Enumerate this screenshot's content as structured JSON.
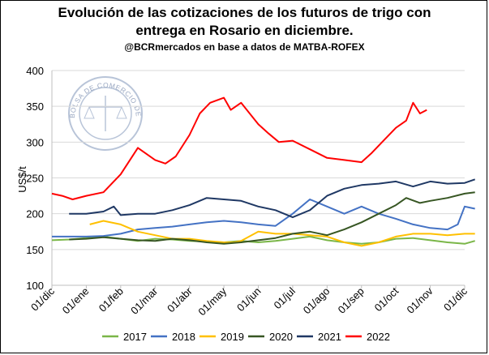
{
  "chart_data": {
    "type": "line",
    "title_line1": "Evolución de las cotizaciones de los futuros de trigo con",
    "title_line2": "entrega en Rosario en diciembre.",
    "subtitle": "@BCRmercados en base a datos de MATBA-ROFEX",
    "ylabel": "US$/t",
    "ylim": [
      100,
      400
    ],
    "yticks": [
      "100",
      "150",
      "200",
      "250",
      "300",
      "350",
      "400"
    ],
    "grid": true,
    "legend_position": "bottom",
    "watermark_text": "BOLSA DE COMERCIO DE ROSARIO",
    "x_unit": "months since 01/dic",
    "xticks": [
      "01/dic",
      "01/ene",
      "01/feb",
      "01/mar",
      "01/abr",
      "01/may",
      "01/jun",
      "01/jul",
      "01/ago",
      "01/sep",
      "01/oct",
      "01/nov",
      "01/dic"
    ],
    "series": [
      {
        "name": "2017",
        "color": "#7ab648",
        "x": [
          0,
          0.5,
          1,
          1.5,
          2,
          2.5,
          3,
          3.5,
          4,
          4.5,
          5,
          5.5,
          6,
          6.5,
          7,
          7.5,
          8,
          8.5,
          9,
          9.5,
          10,
          10.5,
          11,
          11.5,
          12,
          12.3
        ],
        "y": [
          163,
          164,
          166,
          168,
          165,
          162,
          165,
          164,
          162,
          161,
          160,
          162,
          160,
          162,
          165,
          168,
          163,
          160,
          158,
          160,
          165,
          166,
          163,
          160,
          158,
          162
        ]
      },
      {
        "name": "2018",
        "color": "#4472c4",
        "x": [
          0,
          0.5,
          1,
          1.5,
          2,
          2.5,
          3,
          3.5,
          4,
          4.5,
          5,
          5.5,
          6,
          6.5,
          7,
          7.5,
          8,
          8.5,
          9,
          9.5,
          10,
          10.5,
          11,
          11.5,
          11.8,
          12,
          12.2,
          12.3
        ],
        "y": [
          168,
          168,
          168,
          169,
          172,
          178,
          180,
          182,
          185,
          188,
          190,
          188,
          185,
          183,
          200,
          220,
          210,
          200,
          210,
          200,
          193,
          185,
          180,
          178,
          185,
          210,
          208,
          207
        ]
      },
      {
        "name": "2019",
        "color": "#ffc000",
        "x": [
          1.1,
          1.5,
          2,
          2.5,
          3,
          3.5,
          4,
          4.5,
          5,
          5.3,
          5.5,
          6,
          6.5,
          7,
          7.5,
          8,
          8.5,
          9,
          9.5,
          10,
          10.5,
          11,
          11.5,
          12,
          12.3
        ],
        "y": [
          185,
          190,
          185,
          175,
          170,
          165,
          165,
          162,
          160,
          160,
          162,
          175,
          172,
          172,
          170,
          168,
          160,
          155,
          160,
          168,
          172,
          172,
          170,
          172,
          172
        ]
      },
      {
        "name": "2020",
        "color": "#375623",
        "x": [
          0.5,
          1,
          1.5,
          2,
          2.5,
          3,
          3.5,
          4,
          4.5,
          5,
          5.5,
          6,
          6.5,
          7,
          7.5,
          8,
          8.5,
          9,
          9.5,
          10,
          10.3,
          10.7,
          11,
          11.5,
          12,
          12.3
        ],
        "y": [
          164,
          165,
          167,
          165,
          163,
          162,
          165,
          163,
          160,
          158,
          160,
          163,
          166,
          172,
          175,
          170,
          178,
          188,
          200,
          212,
          222,
          215,
          218,
          222,
          228,
          230
        ]
      },
      {
        "name": "2021",
        "color": "#1f3864",
        "x": [
          0.5,
          1,
          1.5,
          1.8,
          2,
          2.5,
          3,
          3.5,
          4,
          4.5,
          5,
          5.5,
          6,
          6.5,
          7,
          7.5,
          8,
          8.5,
          9,
          9.5,
          10,
          10.5,
          11,
          11.5,
          12,
          12.3
        ],
        "y": [
          200,
          200,
          203,
          210,
          198,
          200,
          200,
          205,
          212,
          222,
          220,
          218,
          210,
          205,
          195,
          205,
          225,
          235,
          240,
          242,
          245,
          238,
          245,
          242,
          243,
          248
        ]
      },
      {
        "name": "2022",
        "color": "#ff0000",
        "x": [
          0,
          0.3,
          0.6,
          1,
          1.5,
          2,
          2.5,
          3,
          3.3,
          3.6,
          4,
          4.3,
          4.6,
          5,
          5.2,
          5.5,
          6,
          6.3,
          6.6,
          7,
          7.5,
          8,
          8.5,
          9,
          9.3,
          9.6,
          10,
          10.3,
          10.5,
          10.7,
          10.9
        ],
        "y": [
          228,
          225,
          220,
          225,
          230,
          255,
          292,
          275,
          270,
          280,
          310,
          340,
          355,
          362,
          345,
          355,
          325,
          312,
          300,
          302,
          290,
          278,
          275,
          272,
          285,
          300,
          320,
          330,
          355,
          340,
          345
        ]
      }
    ]
  }
}
